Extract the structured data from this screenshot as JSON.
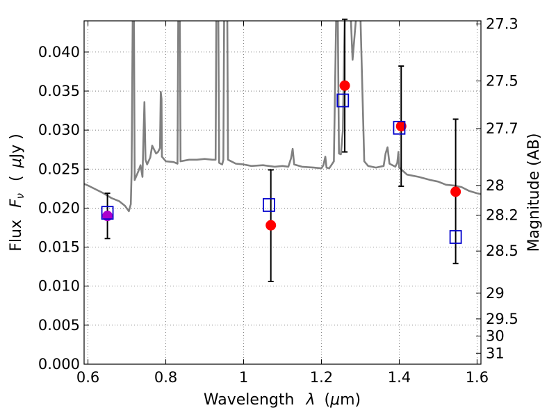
{
  "chart_data": {
    "type": "scatter",
    "xlabel_prefix": "Wavelength",
    "xlabel_symbol": "λ",
    "xlabel_unit_open": "(",
    "xlabel_unit_mu": "μ",
    "xlabel_unit_rest": "m)",
    "ylabel_prefix": "Flux",
    "ylabel_symbol": "F",
    "ylabel_symbol_sub": "ν",
    "ylabel_unit_open": "(",
    "ylabel_unit_mu": "μ",
    "ylabel_unit_rest": "Jy )",
    "ylabel_right": "Magnitude (AB)",
    "xlim": [
      0.59,
      1.61
    ],
    "ylim": [
      0.0,
      0.044
    ],
    "grid": true,
    "x_ticks": [
      {
        "value": 0.6,
        "label": "0.6"
      },
      {
        "value": 0.8,
        "label": "0.8"
      },
      {
        "value": 1.0,
        "label": "1"
      },
      {
        "value": 1.2,
        "label": "1.2"
      },
      {
        "value": 1.4,
        "label": "1.4"
      },
      {
        "value": 1.6,
        "label": "1.6"
      }
    ],
    "y_ticks": [
      {
        "value": 0.0,
        "label": "0.000"
      },
      {
        "value": 0.005,
        "label": "0.005"
      },
      {
        "value": 0.01,
        "label": "0.010"
      },
      {
        "value": 0.015,
        "label": "0.015"
      },
      {
        "value": 0.02,
        "label": "0.020"
      },
      {
        "value": 0.025,
        "label": "0.025"
      },
      {
        "value": 0.03,
        "label": "0.030"
      },
      {
        "value": 0.035,
        "label": "0.035"
      },
      {
        "value": 0.04,
        "label": "0.040"
      }
    ],
    "right_ticks": [
      {
        "flux": 0.0436,
        "label": "27.3"
      },
      {
        "flux": 0.0363,
        "label": "27.5"
      },
      {
        "flux": 0.0302,
        "label": "27.7"
      },
      {
        "flux": 0.0229,
        "label": "28"
      },
      {
        "flux": 0.0191,
        "label": "28.2"
      },
      {
        "flux": 0.0145,
        "label": "28.5"
      },
      {
        "flux": 0.0091,
        "label": "29"
      },
      {
        "flux": 0.0058,
        "label": "29.5"
      },
      {
        "flux": 0.0036,
        "label": "30"
      },
      {
        "flux": 0.0014,
        "label": "31"
      }
    ],
    "model_spectrum": {
      "color": "#808080",
      "points": [
        [
          0.59,
          0.0231
        ],
        [
          0.6,
          0.0229
        ],
        [
          0.62,
          0.0224
        ],
        [
          0.64,
          0.0219
        ],
        [
          0.66,
          0.0213
        ],
        [
          0.68,
          0.0209
        ],
        [
          0.695,
          0.0203
        ],
        [
          0.705,
          0.0196
        ],
        [
          0.71,
          0.0205
        ],
        [
          0.712,
          0.0244
        ],
        [
          0.715,
          0.045
        ],
        [
          0.718,
          0.045
        ],
        [
          0.72,
          0.0236
        ],
        [
          0.73,
          0.0248
        ],
        [
          0.735,
          0.0255
        ],
        [
          0.74,
          0.024
        ],
        [
          0.743,
          0.03
        ],
        [
          0.745,
          0.0336
        ],
        [
          0.748,
          0.0262
        ],
        [
          0.752,
          0.0256
        ],
        [
          0.76,
          0.0265
        ],
        [
          0.765,
          0.028
        ],
        [
          0.77,
          0.0275
        ],
        [
          0.775,
          0.027
        ],
        [
          0.78,
          0.0272
        ],
        [
          0.785,
          0.0277
        ],
        [
          0.787,
          0.0349
        ],
        [
          0.789,
          0.034
        ],
        [
          0.79,
          0.0266
        ],
        [
          0.8,
          0.026
        ],
        [
          0.82,
          0.0259
        ],
        [
          0.83,
          0.0257
        ],
        [
          0.832,
          0.045
        ],
        [
          0.836,
          0.045
        ],
        [
          0.838,
          0.026
        ],
        [
          0.86,
          0.0262
        ],
        [
          0.88,
          0.0262
        ],
        [
          0.9,
          0.0263
        ],
        [
          0.92,
          0.0262
        ],
        [
          0.928,
          0.0262
        ],
        [
          0.93,
          0.045
        ],
        [
          0.935,
          0.045
        ],
        [
          0.937,
          0.0258
        ],
        [
          0.945,
          0.0256
        ],
        [
          0.948,
          0.0262
        ],
        [
          0.95,
          0.045
        ],
        [
          0.956,
          0.045
        ],
        [
          0.958,
          0.045
        ],
        [
          0.96,
          0.0262
        ],
        [
          0.98,
          0.0257
        ],
        [
          1.0,
          0.0256
        ],
        [
          1.02,
          0.0254
        ],
        [
          1.05,
          0.0255
        ],
        [
          1.08,
          0.0253
        ],
        [
          1.1,
          0.0254
        ],
        [
          1.115,
          0.0253
        ],
        [
          1.122,
          0.0264
        ],
        [
          1.126,
          0.0276
        ],
        [
          1.13,
          0.0256
        ],
        [
          1.15,
          0.0253
        ],
        [
          1.18,
          0.0252
        ],
        [
          1.2,
          0.0251
        ],
        [
          1.205,
          0.0255
        ],
        [
          1.21,
          0.0266
        ],
        [
          1.213,
          0.0252
        ],
        [
          1.22,
          0.0251
        ],
        [
          1.232,
          0.026
        ],
        [
          1.238,
          0.045
        ],
        [
          1.242,
          0.045
        ],
        [
          1.245,
          0.027
        ],
        [
          1.25,
          0.0269
        ],
        [
          1.255,
          0.0299
        ],
        [
          1.26,
          0.045
        ],
        [
          1.275,
          0.045
        ],
        [
          1.28,
          0.039
        ],
        [
          1.285,
          0.042
        ],
        [
          1.29,
          0.045
        ],
        [
          1.3,
          0.045
        ],
        [
          1.31,
          0.026
        ],
        [
          1.32,
          0.0254
        ],
        [
          1.34,
          0.0252
        ],
        [
          1.36,
          0.0254
        ],
        [
          1.365,
          0.027
        ],
        [
          1.37,
          0.0278
        ],
        [
          1.375,
          0.0257
        ],
        [
          1.39,
          0.0253
        ],
        [
          1.395,
          0.0258
        ],
        [
          1.398,
          0.0272
        ],
        [
          1.4,
          0.0252
        ],
        [
          1.42,
          0.0243
        ],
        [
          1.45,
          0.024
        ],
        [
          1.48,
          0.0236
        ],
        [
          1.5,
          0.0234
        ],
        [
          1.52,
          0.023
        ],
        [
          1.54,
          0.0229
        ],
        [
          1.56,
          0.0227
        ],
        [
          1.58,
          0.0222
        ],
        [
          1.6,
          0.0219
        ],
        [
          1.61,
          0.0218
        ]
      ]
    },
    "measured": {
      "color": "#ff0000",
      "errorbar_color": "#000000",
      "points": [
        {
          "x": 0.65,
          "y": 0.019,
          "ylo": 0.0161,
          "yhi": 0.0219
        },
        {
          "x": 1.07,
          "y": 0.0178,
          "ylo": 0.0106,
          "yhi": 0.0249
        },
        {
          "x": 1.26,
          "y": 0.0357,
          "ylo": 0.0272,
          "yhi": 0.0442
        },
        {
          "x": 1.405,
          "y": 0.0305,
          "ylo": 0.0228,
          "yhi": 0.0382
        },
        {
          "x": 1.545,
          "y": 0.0221,
          "ylo": 0.0129,
          "yhi": 0.0314
        }
      ]
    },
    "model_photometry": {
      "color": "#0000cc",
      "marker": "open-square",
      "points": [
        {
          "x": 0.65,
          "y": 0.0194
        },
        {
          "x": 1.065,
          "y": 0.0204
        },
        {
          "x": 1.255,
          "y": 0.0338
        },
        {
          "x": 1.4,
          "y": 0.0303
        },
        {
          "x": 1.545,
          "y": 0.0163
        }
      ]
    },
    "overlap_marker_color": "#aa00cc"
  }
}
